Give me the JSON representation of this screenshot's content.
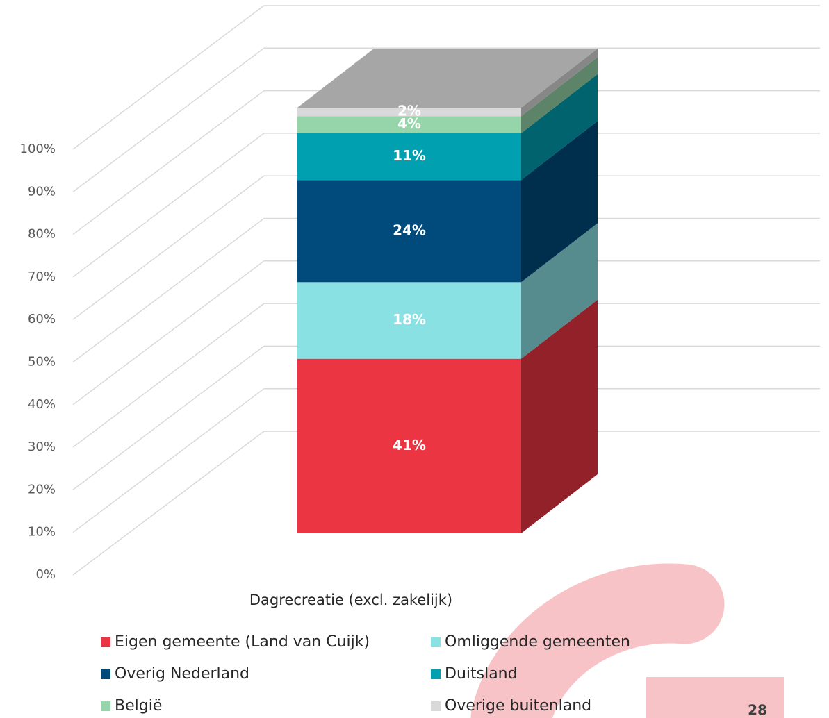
{
  "chart_data": {
    "type": "bar3d",
    "categories": [
      "Dagrecreatie (excl. zakelijk)"
    ],
    "series": [
      {
        "name": "Eigen gemeente (Land van Cuijk)",
        "color": "#ec3543",
        "values": [
          41
        ],
        "value_labels": [
          "41%"
        ]
      },
      {
        "name": "Omliggende gemeenten",
        "color": "#8ae1e3",
        "values": [
          18
        ],
        "value_labels": [
          "18%"
        ]
      },
      {
        "name": "Overig Nederland",
        "color": "#004a7c",
        "values": [
          24
        ],
        "value_labels": [
          "24%"
        ]
      },
      {
        "name": "Duitsland",
        "color": "#00a0b0",
        "values": [
          11
        ],
        "value_labels": [
          "11%"
        ]
      },
      {
        "name": "België",
        "color": "#96d5a9",
        "values": [
          4
        ],
        "value_labels": [
          "4%"
        ]
      },
      {
        "name": "Overige buitenland",
        "color": "#d9d9d9",
        "values": [
          2
        ],
        "value_labels": [
          "2%"
        ]
      }
    ],
    "ylim": [
      0,
      100
    ],
    "yticks": [
      {
        "value": 0,
        "label": "0%"
      },
      {
        "value": 10,
        "label": "10%"
      },
      {
        "value": 20,
        "label": "20%"
      },
      {
        "value": 30,
        "label": "30%"
      },
      {
        "value": 40,
        "label": "40%"
      },
      {
        "value": 50,
        "label": "50%"
      },
      {
        "value": 60,
        "label": "60%"
      },
      {
        "value": 70,
        "label": "70%"
      },
      {
        "value": 80,
        "label": "80%"
      },
      {
        "value": 90,
        "label": "90%"
      },
      {
        "value": 100,
        "label": "100%"
      }
    ],
    "grid": true
  },
  "page_number": "28"
}
